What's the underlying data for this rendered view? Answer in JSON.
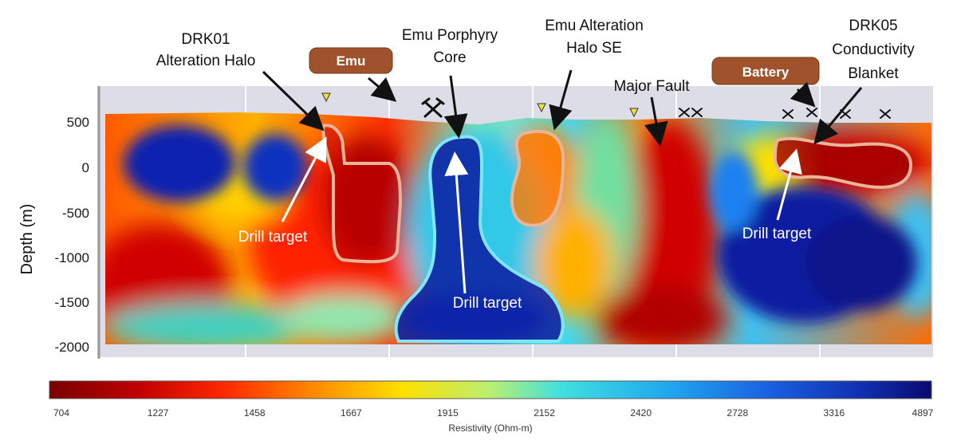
{
  "section": {
    "y_axis_label": "Depth (m)",
    "y_ticks": [
      "500",
      "0",
      "-500",
      "-1000",
      "-1500",
      "-2000"
    ]
  },
  "badges": {
    "emu": "Emu",
    "battery": "Battery"
  },
  "callouts": {
    "drk01_line1": "DRK01",
    "drk01_line2": "Alteration Halo",
    "emu_core_line1": "Emu Porphyry",
    "emu_core_line2": "Core",
    "emu_halo_line1": "Emu Alteration",
    "emu_halo_line2": "Halo SE",
    "major_fault": "Major Fault",
    "drk05_line1": "DRK05",
    "drk05_line2": "Conductivity",
    "drk05_line3": "Blanket"
  },
  "targets": {
    "left": "Drill target",
    "center": "Drill target",
    "right": "Drill target"
  },
  "colorbar": {
    "title": "Resistivity (Ohm-m)",
    "ticks": [
      "704",
      "1227",
      "1458",
      "1667",
      "1915",
      "2152",
      "2420",
      "2728",
      "3316",
      "4897"
    ]
  },
  "colors": {
    "low_resistivity": "#7a0000",
    "high_resistivity": "#0a0a6e",
    "badge": "#a0522d",
    "target_outline_left": "#e8b49a",
    "target_outline_center": "#7fe6ff"
  }
}
